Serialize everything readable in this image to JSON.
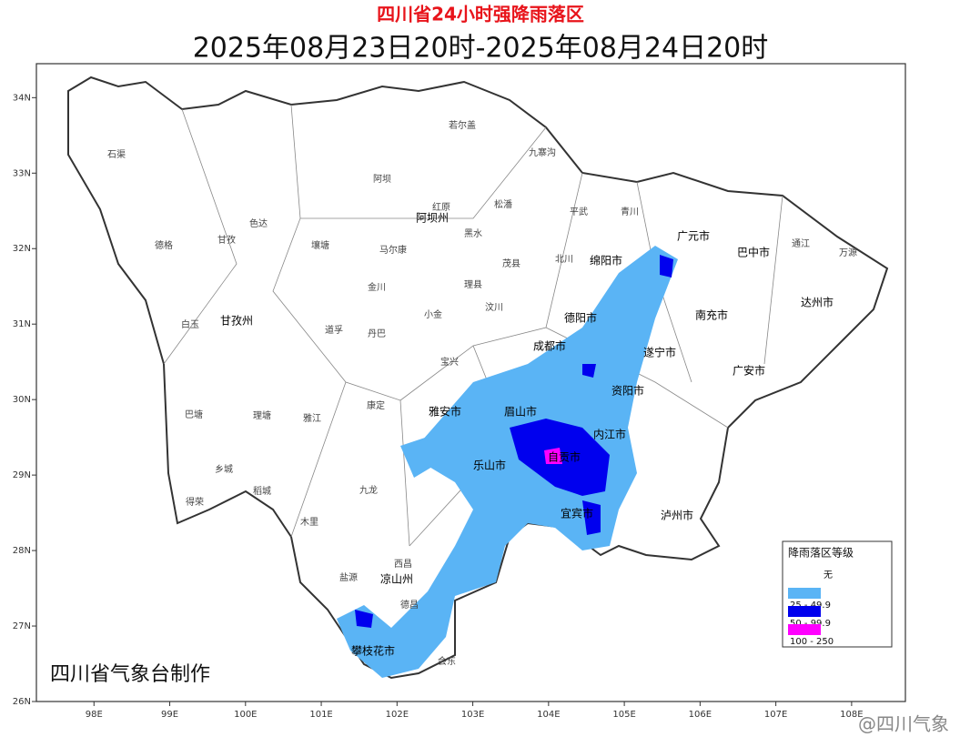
{
  "title": "四川省24小时强降雨落区",
  "subtitle": "2025年08月23日20时-2025年08月24日20时",
  "axes": {
    "xlim": [
      97.24,
      108.71
    ],
    "ylim": [
      26,
      34.45
    ],
    "xticks": [
      {
        "value": 98,
        "label": "98E"
      },
      {
        "value": 99,
        "label": "99E"
      },
      {
        "value": 100,
        "label": "100E"
      },
      {
        "value": 101,
        "label": "101E"
      },
      {
        "value": 102,
        "label": "102E"
      },
      {
        "value": 103,
        "label": "103E"
      },
      {
        "value": 104,
        "label": "104E"
      },
      {
        "value": 105,
        "label": "105E"
      },
      {
        "value": 106,
        "label": "106E"
      },
      {
        "value": 107,
        "label": "107E"
      },
      {
        "value": 108,
        "label": "108E"
      }
    ],
    "yticks": [
      {
        "value": 26,
        "label": "26N"
      },
      {
        "value": 27,
        "label": "27N"
      },
      {
        "value": 28,
        "label": "28N"
      },
      {
        "value": 29,
        "label": "29N"
      },
      {
        "value": 30,
        "label": "30N"
      },
      {
        "value": 31,
        "label": "31N"
      },
      {
        "value": 32,
        "label": "32N"
      },
      {
        "value": 33,
        "label": "33N"
      },
      {
        "value": 34,
        "label": "34N"
      }
    ]
  },
  "places": [
    "石渠",
    "若尔盖",
    "九寨沟",
    "阿坝",
    "红原",
    "阿坝州",
    "松潘",
    "平武",
    "青川",
    "德格",
    "甘孜",
    "色达",
    "壤塘",
    "马尔康",
    "黑水",
    "茂县",
    "北川",
    "绵阳市",
    "广元市",
    "巴中市",
    "通江",
    "万源",
    "金川",
    "理县",
    "汶川",
    "小金",
    "甘孜州",
    "白玉",
    "道孚",
    "丹巴",
    "德阳市",
    "南充市",
    "达州市",
    "成都市",
    "宝兴",
    "遂宁市",
    "广安市",
    "资阳市",
    "康定",
    "巴塘",
    "理塘",
    "雅江",
    "雅安市",
    "眉山市",
    "内江市",
    "乐山市",
    "自贡市",
    "乡城",
    "稻城",
    "九龙",
    "得荣",
    "宜宾市",
    "泸州市",
    "木里",
    "凉山州",
    "西昌",
    "盐源",
    "德昌",
    "攀枝花市",
    "会东"
  ],
  "legend": {
    "title": "降雨落区等级",
    "items": [
      {
        "label": "无",
        "color": "#ffffff"
      },
      {
        "label": "25 - 49.9",
        "color": "#5ab4f5"
      },
      {
        "label": "50 - 99.9",
        "color": "#0000ee"
      },
      {
        "label": "100 - 250",
        "color": "#ff00ff"
      }
    ]
  },
  "credit": "四川省气象台制作",
  "watermark": "@四川气象"
}
